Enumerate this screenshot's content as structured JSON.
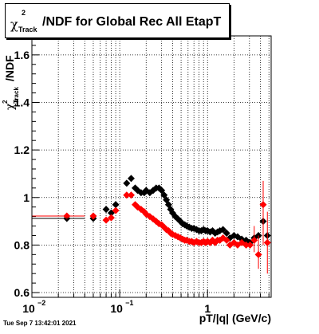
{
  "title": {
    "symbol": "χ",
    "superscript": "2",
    "subscript": "Track",
    "rest": "/NDF for Global Rec All EtapT"
  },
  "timestamp": "Tue Sep  7 13:42:01 2021",
  "chart_data": {
    "type": "scatter",
    "xscale": "log",
    "xlim": [
      0.01,
      5.3
    ],
    "ylim": [
      0.58,
      1.68
    ],
    "grid": true,
    "xlabel": "pT/|q| (GeV/c)",
    "ylabel": "χ²Track/NDF",
    "x_ticks": [
      {
        "v": 0.01,
        "base": "10",
        "exp": "−2"
      },
      {
        "v": 0.1,
        "base": "10",
        "exp": "−1"
      },
      {
        "v": 1,
        "base": "1",
        "exp": ""
      }
    ],
    "y_ticks": [
      "0.6",
      "0.8",
      "1",
      "1.2",
      "1.4",
      "1.6"
    ],
    "colors": {
      "black_series": "#000000",
      "red_series": "#ff0000"
    },
    "series": [
      {
        "color": "#000000",
        "points": [
          {
            "x": 0.025,
            "y": 0.912
          },
          {
            "x": 0.05,
            "y": 0.912
          },
          {
            "x": 0.07,
            "y": 0.95
          },
          {
            "x": 0.08,
            "y": 0.935
          },
          {
            "x": 0.09,
            "y": 0.97
          },
          {
            "x": 0.12,
            "y": 1.06
          },
          {
            "x": 0.135,
            "y": 1.08
          },
          {
            "x": 0.15,
            "y": 1.04
          },
          {
            "x": 0.16,
            "y": 1.03
          },
          {
            "x": 0.175,
            "y": 1.02
          },
          {
            "x": 0.19,
            "y": 1.02
          },
          {
            "x": 0.2,
            "y": 1.03
          },
          {
            "x": 0.22,
            "y": 1.02
          },
          {
            "x": 0.24,
            "y": 1.03
          },
          {
            "x": 0.26,
            "y": 1.04
          },
          {
            "x": 0.28,
            "y": 1.04
          },
          {
            "x": 0.3,
            "y": 1.03
          },
          {
            "x": 0.32,
            "y": 1.01
          },
          {
            "x": 0.34,
            "y": 0.99
          },
          {
            "x": 0.36,
            "y": 0.97
          },
          {
            "x": 0.38,
            "y": 0.95
          },
          {
            "x": 0.4,
            "y": 0.935
          },
          {
            "x": 0.43,
            "y": 0.92
          },
          {
            "x": 0.46,
            "y": 0.91
          },
          {
            "x": 0.49,
            "y": 0.9
          },
          {
            "x": 0.52,
            "y": 0.89
          },
          {
            "x": 0.55,
            "y": 0.885
          },
          {
            "x": 0.58,
            "y": 0.88
          },
          {
            "x": 0.62,
            "y": 0.875
          },
          {
            "x": 0.66,
            "y": 0.87
          },
          {
            "x": 0.7,
            "y": 0.87
          },
          {
            "x": 0.75,
            "y": 0.865
          },
          {
            "x": 0.8,
            "y": 0.86
          },
          {
            "x": 0.85,
            "y": 0.86
          },
          {
            "x": 0.9,
            "y": 0.865
          },
          {
            "x": 0.95,
            "y": 0.86
          },
          {
            "x": 1.0,
            "y": 0.86
          },
          {
            "x": 1.07,
            "y": 0.855
          },
          {
            "x": 1.14,
            "y": 0.86
          },
          {
            "x": 1.22,
            "y": 0.85
          },
          {
            "x": 1.3,
            "y": 0.855
          },
          {
            "x": 1.38,
            "y": 0.86
          },
          {
            "x": 1.5,
            "y": 0.865
          },
          {
            "x": 1.65,
            "y": 0.85
          },
          {
            "x": 1.8,
            "y": 0.83
          },
          {
            "x": 2.0,
            "y": 0.84
          },
          {
            "x": 2.2,
            "y": 0.835
          },
          {
            "x": 2.45,
            "y": 0.825
          },
          {
            "x": 2.75,
            "y": 0.82
          },
          {
            "x": 3.05,
            "y": 0.81
          },
          {
            "x": 3.4,
            "y": 0.83
          },
          {
            "x": 3.8,
            "y": 0.84
          },
          {
            "x": 4.3,
            "y": 0.9
          },
          {
            "x": 4.8,
            "y": 0.84
          }
        ]
      },
      {
        "color": "#ff0000",
        "points": [
          {
            "x": 0.025,
            "y": 0.922
          },
          {
            "x": 0.05,
            "y": 0.922
          },
          {
            "x": 0.07,
            "y": 0.905
          },
          {
            "x": 0.08,
            "y": 0.915
          },
          {
            "x": 0.09,
            "y": 0.945
          },
          {
            "x": 0.12,
            "y": 1.01
          },
          {
            "x": 0.135,
            "y": 1.01
          },
          {
            "x": 0.15,
            "y": 0.97
          },
          {
            "x": 0.16,
            "y": 0.96
          },
          {
            "x": 0.175,
            "y": 0.95
          },
          {
            "x": 0.19,
            "y": 0.94
          },
          {
            "x": 0.2,
            "y": 0.93
          },
          {
            "x": 0.22,
            "y": 0.92
          },
          {
            "x": 0.24,
            "y": 0.91
          },
          {
            "x": 0.26,
            "y": 0.9
          },
          {
            "x": 0.28,
            "y": 0.89
          },
          {
            "x": 0.3,
            "y": 0.885
          },
          {
            "x": 0.32,
            "y": 0.875
          },
          {
            "x": 0.34,
            "y": 0.865
          },
          {
            "x": 0.36,
            "y": 0.86
          },
          {
            "x": 0.38,
            "y": 0.85
          },
          {
            "x": 0.4,
            "y": 0.845
          },
          {
            "x": 0.43,
            "y": 0.84
          },
          {
            "x": 0.46,
            "y": 0.835
          },
          {
            "x": 0.49,
            "y": 0.83
          },
          {
            "x": 0.52,
            "y": 0.825
          },
          {
            "x": 0.55,
            "y": 0.82
          },
          {
            "x": 0.58,
            "y": 0.82
          },
          {
            "x": 0.62,
            "y": 0.815
          },
          {
            "x": 0.66,
            "y": 0.815
          },
          {
            "x": 0.7,
            "y": 0.81
          },
          {
            "x": 0.75,
            "y": 0.815
          },
          {
            "x": 0.8,
            "y": 0.81
          },
          {
            "x": 0.85,
            "y": 0.81
          },
          {
            "x": 0.9,
            "y": 0.815
          },
          {
            "x": 0.95,
            "y": 0.81
          },
          {
            "x": 1.0,
            "y": 0.815
          },
          {
            "x": 1.07,
            "y": 0.81
          },
          {
            "x": 1.14,
            "y": 0.82
          },
          {
            "x": 1.22,
            "y": 0.81
          },
          {
            "x": 1.3,
            "y": 0.82
          },
          {
            "x": 1.38,
            "y": 0.82
          },
          {
            "x": 1.5,
            "y": 0.83
          },
          {
            "x": 1.65,
            "y": 0.82
          },
          {
            "x": 1.8,
            "y": 0.8
          },
          {
            "x": 2.0,
            "y": 0.81
          },
          {
            "x": 2.2,
            "y": 0.8
          },
          {
            "x": 2.45,
            "y": 0.81
          },
          {
            "x": 2.75,
            "y": 0.8
          },
          {
            "x": 3.05,
            "y": 0.8
          },
          {
            "x": 3.4,
            "y": 0.82
          },
          {
            "x": 3.8,
            "y": 0.76
          },
          {
            "x": 4.3,
            "y": 0.97
          },
          {
            "x": 4.8,
            "y": 0.81
          }
        ]
      }
    ]
  }
}
